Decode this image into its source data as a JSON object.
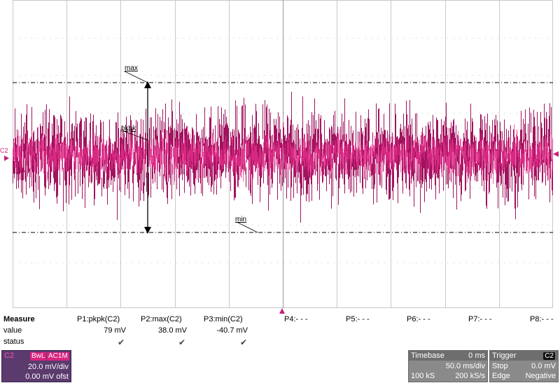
{
  "colors": {
    "trace": "#a0145e",
    "trace_dense": "#e8308f",
    "grid": "#c8c8c8",
    "accent": "#c8207a"
  },
  "screen": {
    "channel_marker": "C2",
    "cursor_labels": {
      "max": "max",
      "pkpk": "pkpk",
      "min": "min"
    }
  },
  "measure": {
    "title": "Measure",
    "row_labels": {
      "value": "value",
      "status": "status"
    },
    "params": [
      {
        "name": "P1:pkpk(C2)",
        "value": "79 mV",
        "status": "✔"
      },
      {
        "name": "P2:max(C2)",
        "value": "38.0 mV",
        "status": "✔"
      },
      {
        "name": "P3:min(C2)",
        "value": "-40.7 mV",
        "status": "✔"
      },
      {
        "name": "P4:- - -",
        "value": "",
        "status": ""
      },
      {
        "name": "P5:- - -",
        "value": "",
        "status": ""
      },
      {
        "name": "P6:- - -",
        "value": "",
        "status": ""
      },
      {
        "name": "P7:- - -",
        "value": "",
        "status": ""
      },
      {
        "name": "P8:- - -",
        "value": "",
        "status": ""
      }
    ]
  },
  "channel": {
    "label": "C2",
    "tags": [
      "BwL",
      "AC1M"
    ],
    "scale": "20.0 mV/div",
    "offset": "0.00 mV ofst"
  },
  "timebase": {
    "title": "Timebase",
    "delay": "0 ms",
    "scale": "50.0 ms/div",
    "samples": "100 kS",
    "rate": "200 kS/s"
  },
  "trigger": {
    "title": "Trigger",
    "source": "C2",
    "mode": "Stop",
    "level": "0.0 mV",
    "type": "Edge",
    "slope": "Negative"
  }
}
